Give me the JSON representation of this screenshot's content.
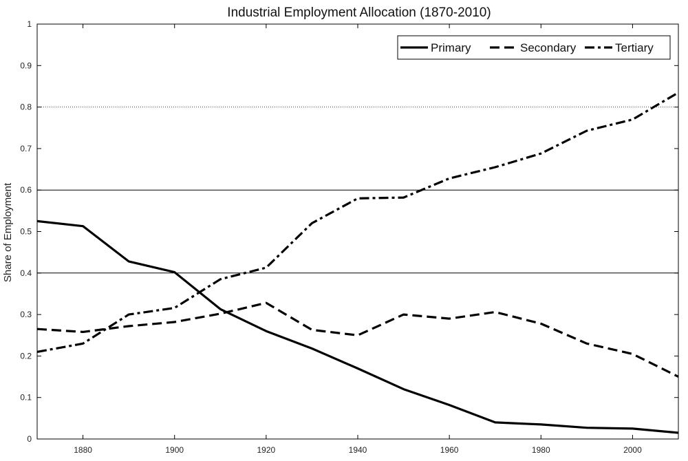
{
  "chart_data": {
    "type": "line",
    "title": "Industrial Employment Allocation (1870-2010)",
    "xlabel": "",
    "ylabel": "Share of Employment",
    "xlim": [
      1870,
      2010
    ],
    "ylim": [
      0,
      1
    ],
    "x_ticks": [
      1880,
      1900,
      1920,
      1940,
      1960,
      1980,
      2000
    ],
    "y_ticks": [
      0,
      0.1,
      0.2,
      0.3,
      0.4,
      0.5,
      0.6,
      0.7,
      0.8,
      0.9,
      1
    ],
    "y_tick_labels": [
      "0",
      "0.1",
      "0.2",
      "0.3",
      "0.4",
      "0.5",
      "0.6",
      "0.7",
      "0.8",
      "0.9",
      "1"
    ],
    "x_tick_labels": [
      "1880",
      "1900",
      "1920",
      "1940",
      "1960",
      "1980",
      "2000"
    ],
    "reference_lines": [
      {
        "y": 0.4,
        "style": "solid"
      },
      {
        "y": 0.6,
        "style": "solid"
      },
      {
        "y": 0.8,
        "style": "dotted"
      }
    ],
    "legend_position": "top-right",
    "x": [
      1870,
      1880,
      1890,
      1900,
      1910,
      1920,
      1930,
      1940,
      1950,
      1960,
      1970,
      1980,
      1990,
      2000,
      2010
    ],
    "series": [
      {
        "name": "Primary",
        "dash": "solid",
        "values": [
          0.525,
          0.513,
          0.428,
          0.402,
          0.313,
          0.26,
          0.218,
          0.17,
          0.12,
          0.082,
          0.04,
          0.035,
          0.027,
          0.025,
          0.015
        ]
      },
      {
        "name": "Secondary",
        "dash": "dashed",
        "values": [
          0.265,
          0.258,
          0.272,
          0.282,
          0.302,
          0.328,
          0.263,
          0.25,
          0.3,
          0.29,
          0.306,
          0.278,
          0.23,
          0.205,
          0.15
        ]
      },
      {
        "name": "Tertiary",
        "dash": "dashdot",
        "values": [
          0.21,
          0.23,
          0.3,
          0.316,
          0.385,
          0.413,
          0.52,
          0.58,
          0.582,
          0.628,
          0.655,
          0.688,
          0.743,
          0.77,
          0.835
        ]
      }
    ],
    "colors": {
      "line": "#000000",
      "grid": "#000000",
      "axis": "#000000"
    }
  }
}
